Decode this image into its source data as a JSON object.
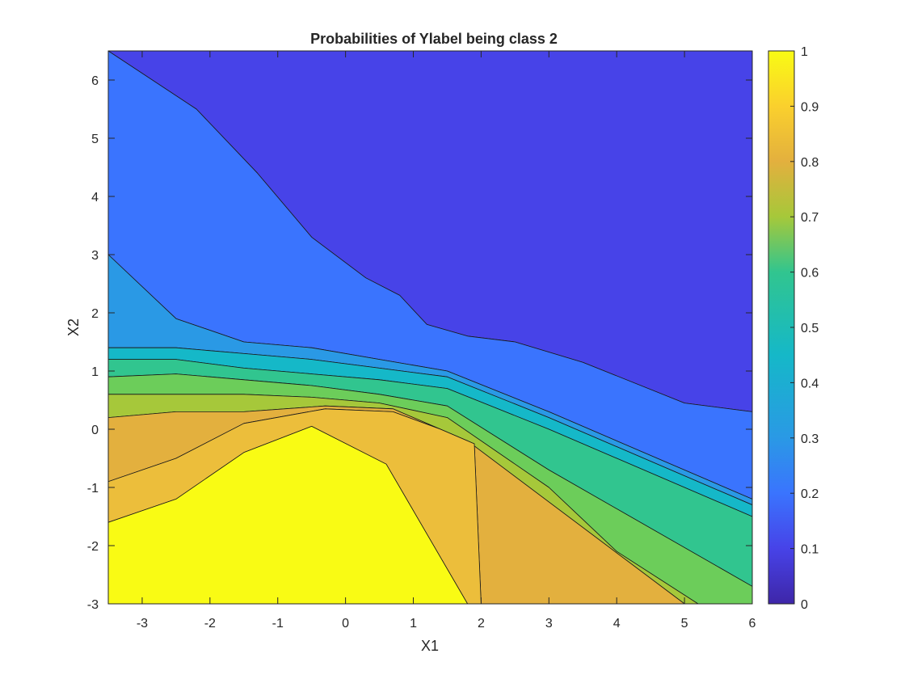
{
  "chart_data": {
    "type": "heatmap",
    "title": "Probabilities of Ylabel being class 2",
    "xlabel": "X1",
    "ylabel": "X2",
    "xlim": [
      -3.5,
      6
    ],
    "ylim": [
      -3,
      6.5
    ],
    "x_ticks": [
      "-3",
      "-2",
      "-1",
      "0",
      "1",
      "2",
      "3",
      "4",
      "5",
      "6"
    ],
    "y_ticks": [
      "-3",
      "-2",
      "-1",
      "0",
      "1",
      "2",
      "3",
      "4",
      "5",
      "6"
    ],
    "colorbar": {
      "range": [
        0,
        1
      ],
      "ticks": [
        "0",
        "0.1",
        "0.2",
        "0.3",
        "0.4",
        "0.5",
        "0.6",
        "0.7",
        "0.8",
        "0.9",
        "1"
      ]
    },
    "contour_levels": [
      0.0,
      0.1,
      0.2,
      0.3,
      0.4,
      0.5,
      0.6,
      0.7,
      0.8,
      0.9,
      1.0
    ],
    "level_colors": [
      "#3e26a8",
      "#4743e8",
      "#3a74fe",
      "#2a99e5",
      "#15b8c8",
      "#31c58f",
      "#6ccd5a",
      "#a6c83a",
      "#e3b03e",
      "#ecbe3b",
      "#fad02d",
      "#f9fb14"
    ],
    "regions": [
      {
        "level": 0.1,
        "x": [
          -3.5,
          6,
          6,
          5.0,
          3.5,
          2.5,
          1.8,
          1.2,
          0.8,
          0.3,
          -0.5,
          -1.3,
          -2.2,
          -3.5
        ],
        "y": [
          6.5,
          6.5,
          0.3,
          0.45,
          1.15,
          1.5,
          1.6,
          1.8,
          2.3,
          2.6,
          3.3,
          4.4,
          5.5,
          6.5
        ]
      },
      {
        "level": 0.2,
        "x": [
          -3.5,
          -2.2,
          -1.3,
          -0.5,
          0.3,
          0.8,
          1.2,
          1.8,
          2.5,
          3.5,
          5.0,
          6,
          6,
          3.0,
          1.5,
          0.5,
          -0.5,
          -1.5,
          -2.5,
          -3.5
        ],
        "y": [
          6.5,
          5.5,
          4.4,
          3.3,
          2.6,
          2.3,
          1.8,
          1.6,
          1.5,
          1.15,
          0.45,
          0.3,
          -1.2,
          0.3,
          1.0,
          1.2,
          1.4,
          1.5,
          1.9,
          3.0
        ]
      },
      {
        "level": 0.3,
        "x": [
          -3.5,
          -2.5,
          -1.5,
          -0.5,
          0.5,
          1.5,
          3.0,
          6,
          6,
          3.0,
          1.5,
          0.5,
          -0.5,
          -1.5,
          -2.5,
          -3.5
        ],
        "y": [
          3.0,
          1.9,
          1.5,
          1.4,
          1.2,
          1.0,
          0.3,
          -1.2,
          -1.3,
          0.2,
          0.9,
          1.05,
          1.2,
          1.3,
          1.4,
          1.4
        ]
      },
      {
        "level": 0.4,
        "x": [
          -3.5,
          -2.5,
          -1.5,
          -0.5,
          0.5,
          1.5,
          3.0,
          6,
          6,
          3.0,
          1.5,
          0.5,
          -0.5,
          -1.5,
          -2.5,
          -3.5
        ],
        "y": [
          1.4,
          1.4,
          1.3,
          1.2,
          1.05,
          0.9,
          0.2,
          -1.3,
          -1.5,
          0.0,
          0.7,
          0.85,
          0.95,
          1.05,
          1.2,
          1.2
        ]
      },
      {
        "level": 0.5,
        "x": [
          -3.5,
          -2.5,
          -1.5,
          -0.5,
          0.5,
          1.5,
          3.0,
          6,
          6,
          3.0,
          1.5,
          0.5,
          -0.5,
          -1.5,
          -2.5,
          -3.5
        ],
        "y": [
          1.2,
          1.2,
          1.05,
          0.95,
          0.85,
          0.7,
          0.0,
          -1.5,
          -2.7,
          -0.7,
          0.4,
          0.6,
          0.75,
          0.85,
          0.95,
          0.9
        ]
      },
      {
        "level": 0.6,
        "x": [
          -3.5,
          -2.5,
          -1.5,
          -0.5,
          0.5,
          1.5,
          3.0,
          6,
          6,
          5.2,
          4.0,
          3.0,
          1.5,
          0.5,
          -0.5,
          -1.5,
          -2.5,
          -3.5
        ],
        "y": [
          0.9,
          0.95,
          0.85,
          0.75,
          0.6,
          0.4,
          -0.7,
          -2.7,
          -3.0,
          -3.0,
          -2.1,
          -1.0,
          0.2,
          0.45,
          0.55,
          0.6,
          0.6,
          0.6
        ]
      },
      {
        "level": 0.7,
        "x": [
          -3.5,
          -2.5,
          -1.5,
          -0.5,
          0.5,
          1.5,
          3.0,
          4.0,
          5.2,
          5.0,
          1.8,
          0.7,
          -0.3,
          -1.5,
          -2.5,
          -3.5
        ],
        "y": [
          0.6,
          0.6,
          0.6,
          0.55,
          0.45,
          0.2,
          -1.0,
          -2.1,
          -3.0,
          -3.0,
          -0.2,
          0.35,
          0.4,
          0.3,
          0.3,
          0.2
        ]
      },
      {
        "level": 0.8,
        "x": [
          -3.5,
          -2.5,
          -1.5,
          -0.3,
          0.7,
          1.8,
          5.0,
          2.0,
          1.9,
          1.4,
          0.7,
          -0.3,
          -1.5,
          -2.5,
          -3.5
        ],
        "y": [
          0.2,
          0.3,
          0.3,
          0.4,
          0.35,
          -0.2,
          -3.0,
          -3.0,
          -0.25,
          0.0,
          0.3,
          0.35,
          0.1,
          -0.5,
          -0.9
        ]
      },
      {
        "level": 0.9,
        "x": [
          -3.5,
          -2.5,
          -1.5,
          -0.3,
          0.7,
          1.4,
          1.9,
          2.0,
          1.8,
          0.6,
          -0.5,
          -1.5,
          -2.5,
          -3.5
        ],
        "y": [
          -0.9,
          -0.5,
          0.1,
          0.35,
          0.3,
          0.0,
          -0.25,
          -3.0,
          -3.0,
          -0.6,
          0.05,
          -0.4,
          -1.2,
          -1.6
        ]
      },
      {
        "level": 1.0,
        "x": [
          -3.5,
          -2.5,
          -1.5,
          -0.5,
          0.6,
          1.8,
          -3.5
        ],
        "y": [
          -1.6,
          -1.2,
          -0.4,
          0.05,
          -0.6,
          -3.0,
          -3.0
        ]
      }
    ]
  }
}
